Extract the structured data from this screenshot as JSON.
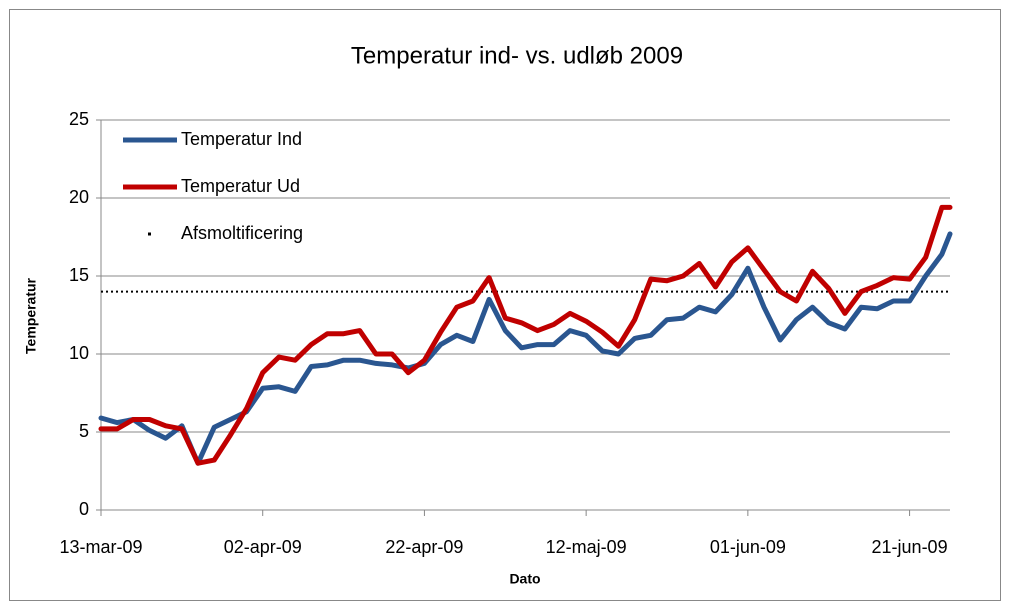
{
  "chart_data": {
    "type": "line",
    "title": "Temperatur ind- vs. udløb 2009",
    "x_label": "Dato",
    "y_label": "Temperatur",
    "x": [
      "2009-03-13",
      "2009-03-15",
      "2009-03-17",
      "2009-03-19",
      "2009-03-21",
      "2009-03-23",
      "2009-03-25",
      "2009-03-27",
      "2009-03-29",
      "2009-03-31",
      "2009-04-02",
      "2009-04-04",
      "2009-04-06",
      "2009-04-08",
      "2009-04-10",
      "2009-04-12",
      "2009-04-14",
      "2009-04-16",
      "2009-04-18",
      "2009-04-20",
      "2009-04-22",
      "2009-04-24",
      "2009-04-26",
      "2009-04-28",
      "2009-04-30",
      "2009-05-02",
      "2009-05-04",
      "2009-05-06",
      "2009-05-08",
      "2009-05-10",
      "2009-05-12",
      "2009-05-14",
      "2009-05-16",
      "2009-05-18",
      "2009-05-20",
      "2009-05-22",
      "2009-05-24",
      "2009-05-26",
      "2009-05-28",
      "2009-05-30",
      "2009-06-01",
      "2009-06-03",
      "2009-06-05",
      "2009-06-07",
      "2009-06-09",
      "2009-06-11",
      "2009-06-13",
      "2009-06-15",
      "2009-06-17",
      "2009-06-19",
      "2009-06-21",
      "2009-06-23",
      "2009-06-25",
      "2009-06-26"
    ],
    "series": [
      {
        "name": "Temperatur Ind",
        "color": "#2a5690",
        "values": [
          5.9,
          5.6,
          5.8,
          5.1,
          4.6,
          5.4,
          3.0,
          5.3,
          5.8,
          6.3,
          7.8,
          7.9,
          7.6,
          9.2,
          9.3,
          9.6,
          9.6,
          9.4,
          9.3,
          9.1,
          9.4,
          10.6,
          11.2,
          10.8,
          13.5,
          11.5,
          10.4,
          10.6,
          10.6,
          11.5,
          11.2,
          10.2,
          10.0,
          11.0,
          11.2,
          12.2,
          12.3,
          13.0,
          12.7,
          13.8,
          15.5,
          13.0,
          10.9,
          12.2,
          13.0,
          12.0,
          11.6,
          13.0,
          12.9,
          13.4,
          13.4,
          15.0,
          16.4,
          17.7
        ]
      },
      {
        "name": "Temperatur Ud",
        "color": "#c00000",
        "values": [
          5.2,
          5.2,
          5.8,
          5.8,
          5.4,
          5.2,
          3.0,
          3.2,
          4.8,
          6.5,
          8.8,
          9.8,
          9.6,
          10.6,
          11.3,
          11.3,
          11.5,
          10.0,
          10.0,
          8.8,
          9.6,
          11.4,
          13.0,
          13.4,
          14.9,
          12.3,
          12.0,
          11.5,
          11.9,
          12.6,
          12.1,
          11.4,
          10.5,
          12.2,
          14.8,
          14.7,
          15.0,
          15.8,
          14.3,
          15.9,
          16.8,
          15.4,
          14.0,
          13.4,
          15.3,
          14.2,
          12.6,
          14.0,
          14.4,
          14.9,
          14.8,
          16.2,
          19.4,
          19.4
        ]
      }
    ],
    "reference_line": {
      "name": "Afsmoltificering",
      "value": 14,
      "color": "#000000"
    },
    "xlim": [
      "2009-03-13",
      "2009-06-26"
    ],
    "xticks": [
      {
        "value": "2009-03-13",
        "label": "13-mar-09"
      },
      {
        "value": "2009-04-02",
        "label": "02-apr-09"
      },
      {
        "value": "2009-04-22",
        "label": "22-apr-09"
      },
      {
        "value": "2009-05-12",
        "label": "12-maj-09"
      },
      {
        "value": "2009-06-01",
        "label": "01-jun-09"
      },
      {
        "value": "2009-06-21",
        "label": "21-jun-09"
      }
    ],
    "ylim": [
      0,
      25
    ],
    "yticks": [
      0,
      5,
      10,
      15,
      20,
      25
    ],
    "grid": true,
    "legend": "top-left"
  }
}
